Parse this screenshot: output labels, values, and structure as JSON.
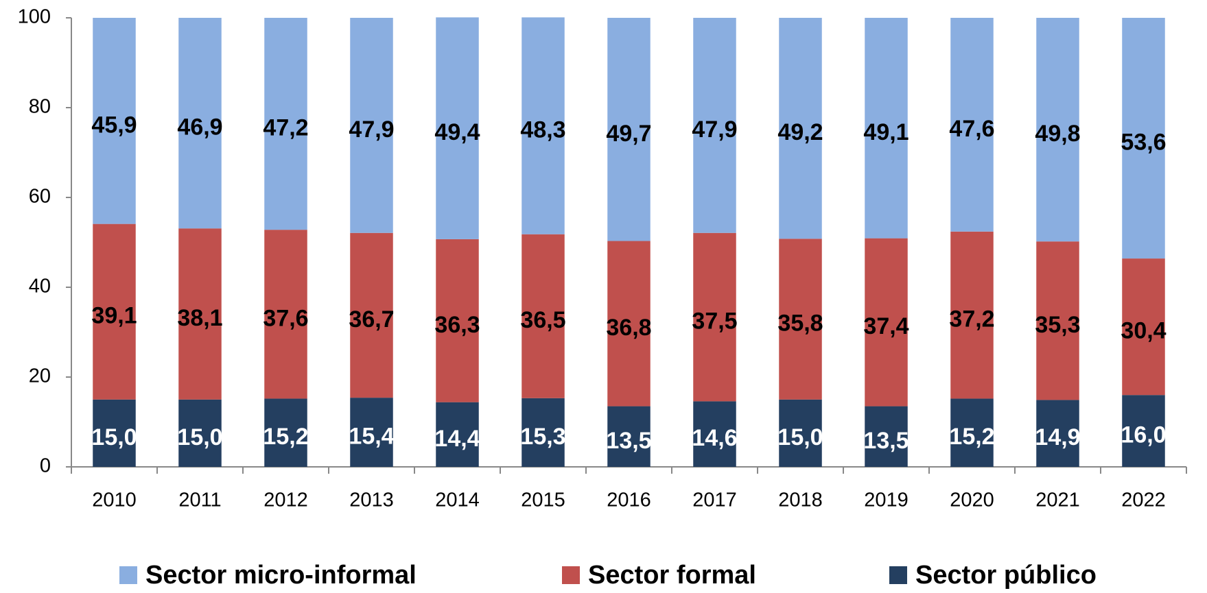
{
  "chart_data": {
    "type": "stacked_bar",
    "categories": [
      "2010",
      "2011",
      "2012",
      "2013",
      "2014",
      "2015",
      "2016",
      "2017",
      "2018",
      "2019",
      "2020",
      "2021",
      "2022"
    ],
    "series": [
      {
        "name": "Sector micro-informal",
        "color": "#8aaee0",
        "values": [
          45.9,
          46.9,
          47.2,
          47.9,
          49.4,
          48.3,
          49.7,
          47.9,
          49.2,
          49.1,
          47.6,
          49.8,
          53.6
        ],
        "value_labels": [
          "45,9",
          "46,9",
          "47,2",
          "47,9",
          "49,4",
          "48,3",
          "49,7",
          "47,9",
          "49,2",
          "49,1",
          "47,6",
          "49,8",
          "53,6"
        ]
      },
      {
        "name": "Sector formal",
        "color": "#c0504d",
        "values": [
          39.1,
          38.1,
          37.6,
          36.7,
          36.3,
          36.5,
          36.8,
          37.5,
          35.8,
          37.4,
          37.2,
          35.3,
          30.4
        ],
        "value_labels": [
          "39,1",
          "38,1",
          "37,6",
          "36,7",
          "36,3",
          "36,5",
          "36,8",
          "37,5",
          "35,8",
          "37,4",
          "37,2",
          "35,3",
          "30,4"
        ]
      },
      {
        "name": "Sector público",
        "color": "#243f60",
        "values": [
          15.0,
          15.0,
          15.2,
          15.4,
          14.4,
          15.3,
          13.5,
          14.6,
          15.0,
          13.5,
          15.2,
          14.9,
          16.0
        ],
        "value_labels": [
          "15,0",
          "15,0",
          "15,2",
          "15,4",
          "14,4",
          "15,3",
          "13,5",
          "14,6",
          "15,0",
          "13,5",
          "15,2",
          "14,9",
          "16,0"
        ]
      }
    ],
    "ylim": [
      0,
      100
    ],
    "yticks": [
      0,
      20,
      40,
      60,
      80,
      100
    ],
    "grid": false
  }
}
